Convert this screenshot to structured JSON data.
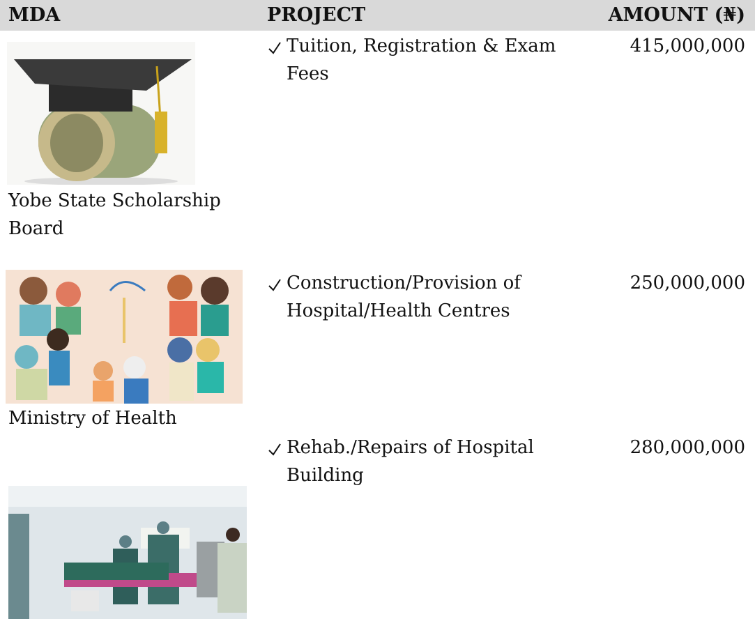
{
  "header": {
    "mda": "MDA",
    "project": "PROJECT",
    "amount": "AMOUNT (₦)"
  },
  "rows": [
    {
      "mda": "Yobe State Scholarship Board",
      "project": "Tuition, Registration & Exam Fees",
      "amount": "415,000,000"
    },
    {
      "mda": "Ministry of Health",
      "project": "Construction/Provision of Hospital/Health Centres",
      "amount": "250,000,000"
    },
    {
      "project": "Rehab./Repairs of Hospital Building",
      "amount": "280,000,000"
    }
  ]
}
